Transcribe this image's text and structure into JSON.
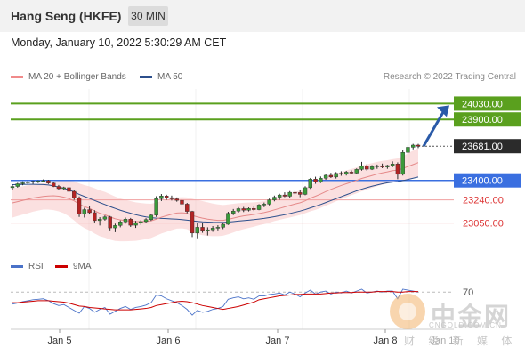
{
  "header": {
    "title": "Hang Seng (HKFE)",
    "timeframe": "30 MIN"
  },
  "datetime": "Monday, January 10, 2022 5:30:29 AM CET",
  "legend": {
    "ma20": {
      "label": "MA 20 + Bollinger Bands",
      "color": "#f08a8a"
    },
    "ma50": {
      "label": "MA 50",
      "color": "#2c4f8c"
    }
  },
  "credit": "Research © 2022 Trading Central",
  "rsi_legend": {
    "rsi": {
      "label": "RSI",
      "color": "#4a72c8"
    },
    "ma9": {
      "label": "9MA",
      "color": "#cc0000"
    }
  },
  "watermark": {
    "text": "中金网",
    "sub": "CNGOLD.COM.CN",
    "sub2": "财 经 新 媒 体"
  },
  "chart_data": {
    "type": "candlestick",
    "x_ticks": [
      "Jan 5",
      "Jan 6",
      "Jan 7",
      "Jan 8",
      "Jan 10"
    ],
    "x_tick_labels": [
      "Jan 5",
      "Jan 6",
      "Jan 7",
      "Jan 8"
    ],
    "x_tick_watermark_overlap": "Jan 10",
    "ylim": [
      22850,
      24150
    ],
    "current_price": {
      "value": 23681.0,
      "label": "23681.00"
    },
    "levels": [
      {
        "value": 24030.0,
        "label": "24030.00",
        "kind": "resistance",
        "color": "#5aa01e"
      },
      {
        "value": 23900.0,
        "label": "23900.00",
        "kind": "resistance",
        "color": "#5aa01e"
      },
      {
        "value": 23400.0,
        "label": "23400.00",
        "kind": "pivot",
        "color": "#3a6fe0"
      },
      {
        "value": 23240.0,
        "label": "23240.00",
        "kind": "support",
        "color": "#dd3333"
      },
      {
        "value": 23050.0,
        "label": "23050.00",
        "kind": "support",
        "color": "#dd3333"
      }
    ],
    "candles": [
      [
        23340,
        23365,
        23325,
        23350
      ],
      [
        23350,
        23380,
        23340,
        23372
      ],
      [
        23372,
        23392,
        23360,
        23380
      ],
      [
        23380,
        23400,
        23366,
        23388
      ],
      [
        23388,
        23398,
        23370,
        23392
      ],
      [
        23392,
        23400,
        23378,
        23395
      ],
      [
        23395,
        23408,
        23385,
        23398
      ],
      [
        23398,
        23405,
        23370,
        23378
      ],
      [
        23378,
        23390,
        23345,
        23350
      ],
      [
        23350,
        23362,
        23325,
        23332
      ],
      [
        23332,
        23348,
        23318,
        23340
      ],
      [
        23340,
        23346,
        23300,
        23310
      ],
      [
        23310,
        23318,
        23240,
        23255
      ],
      [
        23255,
        23268,
        23100,
        23122
      ],
      [
        23122,
        23175,
        23095,
        23160
      ],
      [
        23160,
        23190,
        23120,
        23135
      ],
      [
        23135,
        23155,
        23055,
        23070
      ],
      [
        23070,
        23098,
        23030,
        23082
      ],
      [
        23082,
        23112,
        23070,
        23100
      ],
      [
        23100,
        23108,
        22990,
        23010
      ],
      [
        23010,
        23045,
        22975,
        23030
      ],
      [
        23030,
        23072,
        23015,
        23060
      ],
      [
        23060,
        23095,
        23045,
        23082
      ],
      [
        23082,
        23092,
        23018,
        23032
      ],
      [
        23032,
        23068,
        23010,
        23050
      ],
      [
        23050,
        23075,
        23035,
        23062
      ],
      [
        23062,
        23090,
        23052,
        23078
      ],
      [
        23078,
        23122,
        23068,
        23115
      ],
      [
        23115,
        23270,
        23100,
        23250
      ],
      [
        23250,
        23288,
        23230,
        23272
      ],
      [
        23272,
        23282,
        23240,
        23258
      ],
      [
        23258,
        23275,
        23235,
        23248
      ],
      [
        23248,
        23260,
        23225,
        23236
      ],
      [
        23236,
        23250,
        23190,
        23205
      ],
      [
        23205,
        23215,
        23130,
        23145
      ],
      [
        23145,
        23150,
        22935,
        22968
      ],
      [
        22968,
        23050,
        22925,
        23015
      ],
      [
        23015,
        23048,
        22970,
        22990
      ],
      [
        22990,
        23015,
        22948,
        22995
      ],
      [
        22995,
        23025,
        22978,
        23008
      ],
      [
        23008,
        23032,
        22990,
        23015
      ],
      [
        23015,
        23050,
        23000,
        23040
      ],
      [
        23040,
        23142,
        23035,
        23130
      ],
      [
        23130,
        23165,
        23115,
        23148
      ],
      [
        23148,
        23180,
        23135,
        23168
      ],
      [
        23168,
        23182,
        23140,
        23155
      ],
      [
        23155,
        23178,
        23145,
        23170
      ],
      [
        23170,
        23185,
        23148,
        23160
      ],
      [
        23160,
        23205,
        23155,
        23198
      ],
      [
        23198,
        23218,
        23180,
        23205
      ],
      [
        23205,
        23250,
        23195,
        23240
      ],
      [
        23240,
        23275,
        23228,
        23262
      ],
      [
        23262,
        23290,
        23240,
        23280
      ],
      [
        23280,
        23302,
        23262,
        23270
      ],
      [
        23270,
        23312,
        23258,
        23302
      ],
      [
        23302,
        23322,
        23280,
        23300
      ],
      [
        23300,
        23325,
        23262,
        23285
      ],
      [
        23285,
        23352,
        23278,
        23340
      ],
      [
        23340,
        23420,
        23330,
        23410
      ],
      [
        23410,
        23430,
        23372,
        23385
      ],
      [
        23385,
        23432,
        23378,
        23418
      ],
      [
        23418,
        23455,
        23405,
        23442
      ],
      [
        23442,
        23462,
        23420,
        23428
      ],
      [
        23428,
        23468,
        23415,
        23458
      ],
      [
        23458,
        23475,
        23438,
        23452
      ],
      [
        23452,
        23478,
        23440,
        23468
      ],
      [
        23468,
        23482,
        23450,
        23460
      ],
      [
        23460,
        23498,
        23452,
        23490
      ],
      [
        23490,
        23552,
        23480,
        23518
      ],
      [
        23518,
        23532,
        23478,
        23492
      ],
      [
        23492,
        23525,
        23485,
        23512
      ],
      [
        23512,
        23530,
        23495,
        23520
      ],
      [
        23520,
        23538,
        23500,
        23510
      ],
      [
        23510,
        23528,
        23495,
        23522
      ],
      [
        23522,
        23556,
        23508,
        23535
      ],
      [
        23535,
        23548,
        23410,
        23450
      ],
      [
        23450,
        23650,
        23440,
        23630
      ],
      [
        23630,
        23688,
        23618,
        23672
      ],
      [
        23672,
        23700,
        23655,
        23690
      ],
      [
        23690,
        23700,
        23665,
        23681
      ]
    ],
    "ma20": [
      23215,
      23225,
      23235,
      23245,
      23255,
      23262,
      23268,
      23272,
      23274,
      23270,
      23262,
      23250,
      23232,
      23205,
      23185,
      23170,
      23150,
      23130,
      23118,
      23100,
      23085,
      23076,
      23070,
      23066,
      23062,
      23062,
      23064,
      23068,
      23082,
      23098,
      23110,
      23122,
      23132,
      23134,
      23130,
      23112,
      23100,
      23090,
      23082,
      23076,
      23072,
      23072,
      23080,
      23090,
      23100,
      23108,
      23114,
      23120,
      23128,
      23136,
      23146,
      23158,
      23170,
      23182,
      23194,
      23206,
      23216,
      23232,
      23254,
      23270,
      23288,
      23308,
      23326,
      23342,
      23358,
      23372,
      23386,
      23400,
      23416,
      23428,
      23440,
      23452,
      23462,
      23470,
      23480,
      23484,
      23498,
      23514,
      23530,
      23546
    ],
    "ma50": [
      23365,
      23366,
      23367,
      23368,
      23368,
      23367,
      23366,
      23362,
      23355,
      23345,
      23335,
      23322,
      23305,
      23285,
      23268,
      23252,
      23235,
      23218,
      23202,
      23185,
      23170,
      23155,
      23142,
      23130,
      23118,
      23108,
      23100,
      23094,
      23090,
      23088,
      23086,
      23084,
      23082,
      23078,
      23074,
      23068,
      23064,
      23060,
      23058,
      23056,
      23055,
      23055,
      23058,
      23062,
      23066,
      23070,
      23074,
      23078,
      23083,
      23088,
      23095,
      23102,
      23110,
      23118,
      23128,
      23138,
      23148,
      23160,
      23174,
      23188,
      23202,
      23218,
      23234,
      23250,
      23266,
      23282,
      23298,
      23314,
      23328,
      23340,
      23352,
      23362,
      23372,
      23380,
      23386,
      23390,
      23398,
      23408,
      23418,
      23428
    ],
    "bb_halfwidth": [
      120,
      118,
      116,
      115,
      112,
      110,
      108,
      112,
      118,
      124,
      132,
      145,
      160,
      170,
      176,
      180,
      186,
      188,
      188,
      186,
      182,
      176,
      170,
      164,
      158,
      152,
      146,
      140,
      136,
      134,
      132,
      130,
      128,
      128,
      130,
      138,
      140,
      140,
      138,
      134,
      130,
      126,
      122,
      118,
      112,
      108,
      104,
      100,
      96,
      94,
      92,
      92,
      94,
      96,
      98,
      100,
      100,
      102,
      108,
      112,
      114,
      116,
      116,
      114,
      112,
      110,
      108,
      106,
      106,
      104,
      102,
      100,
      98,
      96,
      94,
      96,
      100,
      108,
      114,
      118
    ],
    "rsi": {
      "ylim": [
        0,
        100
      ],
      "level_label": "70",
      "level": 70,
      "rsi_values": [
        45,
        47,
        50,
        52,
        54,
        55,
        56,
        52,
        46,
        42,
        44,
        38,
        32,
        26,
        40,
        36,
        28,
        34,
        38,
        24,
        30,
        36,
        40,
        34,
        38,
        40,
        43,
        48,
        64,
        62,
        56,
        52,
        48,
        42,
        34,
        22,
        32,
        28,
        30,
        34,
        36,
        40,
        55,
        58,
        60,
        56,
        58,
        55,
        62,
        62,
        65,
        66,
        68,
        64,
        70,
        66,
        60,
        68,
        74,
        66,
        70,
        72,
        66,
        70,
        68,
        72,
        68,
        72,
        76,
        68,
        70,
        72,
        70,
        72,
        72,
        56,
        76,
        74,
        72,
        70
      ],
      "ma9_values": [
        48,
        48,
        49,
        50,
        51,
        52,
        52,
        52,
        51,
        50,
        49,
        47,
        44,
        41,
        40,
        38,
        37,
        36,
        35,
        34,
        33,
        33,
        33,
        33,
        34,
        35,
        36,
        38,
        42,
        44,
        46,
        48,
        50,
        51,
        50,
        48,
        45,
        42,
        40,
        38,
        36,
        34,
        36,
        38,
        40,
        43,
        46,
        49,
        54,
        56,
        58,
        60,
        62,
        63,
        64,
        65,
        65,
        66,
        66,
        66,
        66,
        67,
        68,
        68,
        69,
        69,
        69,
        70,
        70,
        70,
        70,
        71,
        71,
        71,
        71,
        70,
        70,
        71,
        71,
        71
      ]
    }
  }
}
